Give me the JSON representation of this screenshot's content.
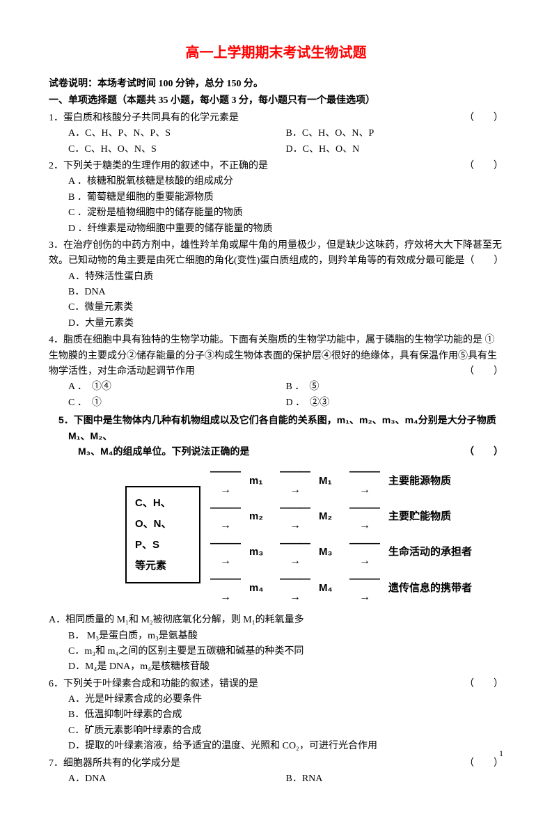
{
  "title": "高一上学期期末考试生物试题",
  "instructions": "试卷说明：本场考试时间 100 分钟，总分 150 分。",
  "section_header": "一、单项选择题（本题共 35 小题，每小题 3 分，每小题只有一个最佳选项）",
  "q1": {
    "stem": "1．蛋白质和核酸分子共同具有的化学元素是",
    "paren": "（　　）",
    "A": "A．C、H、P、N、P、S",
    "B": "B．C、H、O、N、P",
    "C": "C．C、H、O、N、S",
    "D": "D．C、H、O、N"
  },
  "q2": {
    "stem": "2．下列关于糖类的生理作用的叙述中，不正确的是",
    "paren": "（　　）",
    "A": "A ．核糖和脱氧核糖是核酸的组成成分",
    "B": "B ．葡萄糖是细胞的重要能源物质",
    "C": "C ．淀粉是植物细胞中的储存能量的物质",
    "D": "D ．纤维素是动物细胞中重要的储存能量的物质"
  },
  "q3": {
    "stem": "3．在治疗创伤的中药方剂中，雄性羚羊角或犀牛角的用量极少，但是缺少这味药，疗效将大大下降甚至无效。已知动物的角主要是由死亡细胞的角化(变性)蛋白质组成的，则羚羊角等的有效成分最可能是（　　）",
    "A": "A．特殊活性蛋白质",
    "B": "B．DNA",
    "C": "C．微量元素类",
    "D": "D．大量元素类"
  },
  "q4": {
    "stem": "4．脂质在细胞中具有独特的生物学功能。下面有关脂质的生物学功能中，属于磷脂的生物学功能的是 ①生物膜的主要成分②储存能量的分子③构成生物体表面的保护层④很好的绝缘体，具有保温作用⑤具有生物学活性，对生命活动起调节作用",
    "paren": "（　　）",
    "A": "A ．　①④",
    "B": "B ．　⑤",
    "C": "C ．　①",
    "D": "D ．　②③"
  },
  "q5": {
    "stem1": "5．下图中是生物体内几种有机物组成以及它们各自能的关系图，m₁、m₂、m₃、m₄分别是大分子物质 M₁、M₂、",
    "stem2": "M₃、M₄的组成单位。下列说法正确的是",
    "paren": "（　　）",
    "A": "A．相同质量的 M₁和 M₂被彻底氧化分解，则 M₁的耗氧量多",
    "B": "B． M₃是蛋白质，m₃是氨基酸",
    "C": "C．m₃和 m₄之间的区别主要是五碳糖和碱基的种类不同",
    "D": "D．M₄是 DNA，m₄是核糖核苷酸"
  },
  "diagram": {
    "left": [
      "C、H、",
      "O、N、",
      "P、S",
      "等元素"
    ],
    "m": [
      "m₁",
      "m₂",
      "m₃",
      "m₄"
    ],
    "M": [
      "M₁",
      "M₂",
      "M₃",
      "M₄"
    ],
    "out": [
      "主要能源物质",
      "主要贮能物质",
      "生命活动的承担者",
      "遗传信息的携带者"
    ],
    "arrow": "———→"
  },
  "q6": {
    "stem": "6．下列关于叶绿素合成和功能的叙述，错误的是",
    "paren": "（　　）",
    "A": "A．光是叶绿素合成的必要条件",
    "B": "B．低温抑制叶绿素的合成",
    "C": "C．矿质元素影响叶绿素的合成",
    "D": "D．提取的叶绿素溶液，给予适宜的温度、光照和 CO₂，可进行光合作用"
  },
  "q7": {
    "stem": "7．细胞器所共有的化学成分是",
    "paren": "（　　）",
    "A": "A．DNA",
    "B": "B．RNA"
  },
  "page_number": "1",
  "colors": {
    "title": "#ff0000",
    "text": "#000000",
    "background": "#ffffff"
  }
}
